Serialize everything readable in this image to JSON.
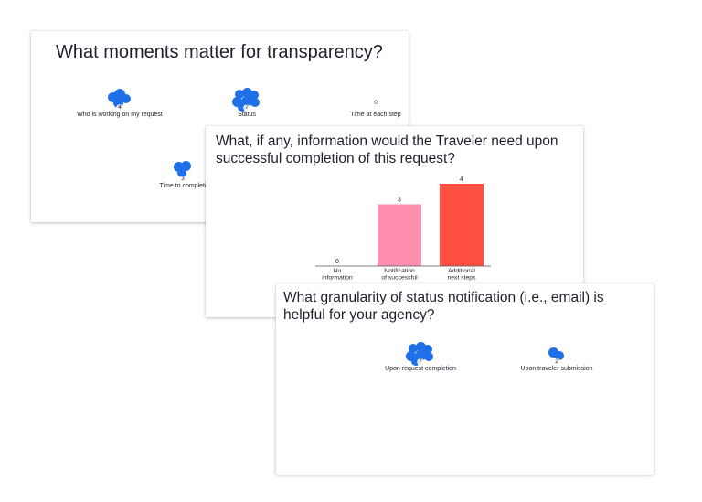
{
  "slide1": {
    "title": "What moments matter for transparency?",
    "items": [
      {
        "label": "Who is working on my request",
        "count": "4"
      },
      {
        "label": "Status",
        "count": "7"
      },
      {
        "label": "Time at each step",
        "count": "0"
      },
      {
        "label": "Time to completi",
        "count": "3"
      }
    ]
  },
  "slide2": {
    "title": "What, if any, information would the Traveler need upon successful completion of this request?",
    "chart_data": {
      "type": "bar",
      "categories": [
        [
          "No",
          "information"
        ],
        [
          "Notification",
          "of successful"
        ],
        [
          "Additional",
          "next steps"
        ]
      ],
      "values": [
        0,
        3,
        4
      ],
      "colors": [
        "#d0d0d0",
        "#ff8fb0",
        "#ff4f40"
      ],
      "ylim": [
        0,
        4
      ]
    }
  },
  "slide3": {
    "title": "What granularity of status notification (i.e., email) is helpful for your agency?",
    "items": [
      {
        "label": "Upon request completion",
        "count": "7"
      },
      {
        "label": "Upon traveler submission",
        "count": "2"
      }
    ]
  }
}
